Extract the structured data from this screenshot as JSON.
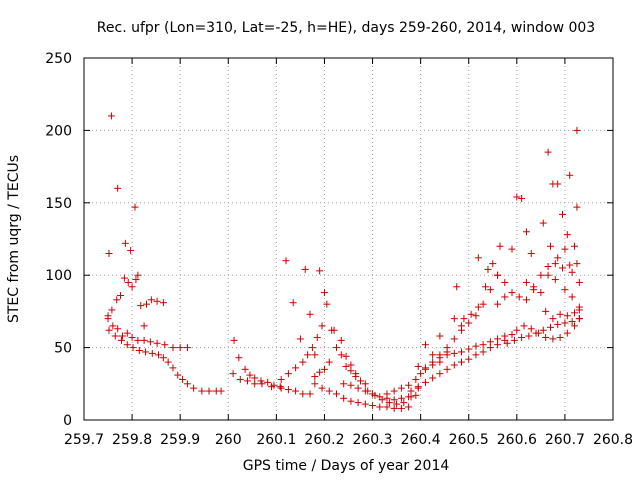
{
  "chart_data": {
    "type": "scatter",
    "title": "Rec. ufpr (Lon=310, Lat=-25, h=HE), days 259-260, 2014, window 003",
    "xlabel": "GPS time / Days of year 2014",
    "ylabel": "STEC from uqrg / TECUs",
    "xlim": [
      259.7,
      260.8
    ],
    "ylim": [
      0,
      250
    ],
    "x_ticks": [
      "259.7",
      "259.8",
      "259.9",
      "260",
      "260.1",
      "260.2",
      "260.3",
      "260.4",
      "260.5",
      "260.6",
      "260.7",
      "260.8"
    ],
    "y_ticks": [
      "0",
      "50",
      "100",
      "150",
      "200",
      "250"
    ],
    "grid": true,
    "marker": "+",
    "color": "#cc0000",
    "points": [
      [
        259.752,
        115
      ],
      [
        259.757,
        210
      ],
      [
        259.77,
        160
      ],
      [
        259.786,
        122
      ],
      [
        259.797,
        117
      ],
      [
        259.806,
        147
      ],
      [
        259.75,
        72
      ],
      [
        259.758,
        76
      ],
      [
        259.768,
        83
      ],
      [
        259.776,
        86
      ],
      [
        259.784,
        98
      ],
      [
        259.792,
        95
      ],
      [
        259.8,
        92
      ],
      [
        259.808,
        97
      ],
      [
        259.812,
        100
      ],
      [
        259.818,
        79
      ],
      [
        259.825,
        65
      ],
      [
        259.83,
        80
      ],
      [
        259.84,
        83
      ],
      [
        259.852,
        82
      ],
      [
        259.865,
        81
      ],
      [
        259.75,
        70
      ],
      [
        259.76,
        65
      ],
      [
        259.77,
        63
      ],
      [
        259.78,
        58
      ],
      [
        259.79,
        60
      ],
      [
        259.8,
        57
      ],
      [
        259.812,
        55
      ],
      [
        259.825,
        55
      ],
      [
        259.838,
        54
      ],
      [
        259.852,
        53
      ],
      [
        259.868,
        52
      ],
      [
        259.885,
        50
      ],
      [
        259.9,
        50
      ],
      [
        259.915,
        50
      ],
      [
        259.752,
        62
      ],
      [
        259.765,
        58
      ],
      [
        259.778,
        55
      ],
      [
        259.79,
        52
      ],
      [
        259.802,
        50
      ],
      [
        259.815,
        48
      ],
      [
        259.828,
        47
      ],
      [
        259.842,
        46
      ],
      [
        259.855,
        45
      ],
      [
        259.865,
        43
      ],
      [
        259.875,
        40
      ],
      [
        259.885,
        36
      ],
      [
        259.895,
        31
      ],
      [
        259.905,
        28
      ],
      [
        259.915,
        25
      ],
      [
        259.928,
        22
      ],
      [
        259.945,
        20
      ],
      [
        259.96,
        20
      ],
      [
        259.975,
        20
      ],
      [
        259.985,
        20
      ],
      [
        260.012,
        55
      ],
      [
        260.022,
        43
      ],
      [
        260.035,
        35
      ],
      [
        260.045,
        31
      ],
      [
        260.055,
        29
      ],
      [
        260.068,
        27
      ],
      [
        260.082,
        26
      ],
      [
        260.095,
        24
      ],
      [
        260.108,
        23
      ],
      [
        260.01,
        32
      ],
      [
        260.025,
        28
      ],
      [
        260.04,
        27
      ],
      [
        260.055,
        25
      ],
      [
        260.07,
        25
      ],
      [
        260.09,
        23
      ],
      [
        260.11,
        22
      ],
      [
        260.125,
        21
      ],
      [
        260.14,
        20
      ],
      [
        260.155,
        18
      ],
      [
        260.17,
        18
      ],
      [
        260.12,
        110
      ],
      [
        260.135,
        81
      ],
      [
        260.15,
        56
      ],
      [
        260.16,
        104
      ],
      [
        260.17,
        73
      ],
      [
        260.18,
        45
      ],
      [
        260.19,
        103
      ],
      [
        260.2,
        88
      ],
      [
        260.11,
        28
      ],
      [
        260.125,
        32
      ],
      [
        260.14,
        36
      ],
      [
        260.155,
        40
      ],
      [
        260.165,
        45
      ],
      [
        260.175,
        50
      ],
      [
        260.185,
        57
      ],
      [
        260.195,
        65
      ],
      [
        260.18,
        30
      ],
      [
        260.19,
        33
      ],
      [
        260.2,
        35
      ],
      [
        260.21,
        40
      ],
      [
        260.22,
        62
      ],
      [
        260.235,
        55
      ],
      [
        260.245,
        44
      ],
      [
        260.255,
        38
      ],
      [
        260.265,
        30
      ],
      [
        260.275,
        27
      ],
      [
        260.285,
        25
      ],
      [
        260.205,
        80
      ],
      [
        260.215,
        62
      ],
      [
        260.225,
        50
      ],
      [
        260.235,
        45
      ],
      [
        260.245,
        37
      ],
      [
        260.255,
        34
      ],
      [
        260.265,
        32
      ],
      [
        260.18,
        25
      ],
      [
        260.195,
        22
      ],
      [
        260.21,
        20
      ],
      [
        260.225,
        18
      ],
      [
        260.24,
        15
      ],
      [
        260.255,
        13
      ],
      [
        260.27,
        12
      ],
      [
        260.285,
        11
      ],
      [
        260.3,
        10
      ],
      [
        260.315,
        9
      ],
      [
        260.33,
        9
      ],
      [
        260.345,
        8
      ],
      [
        260.36,
        8
      ],
      [
        260.375,
        9
      ],
      [
        260.24,
        25
      ],
      [
        260.255,
        24
      ],
      [
        260.27,
        22
      ],
      [
        260.285,
        20
      ],
      [
        260.3,
        18
      ],
      [
        260.315,
        16
      ],
      [
        260.33,
        15
      ],
      [
        260.345,
        14
      ],
      [
        260.36,
        15
      ],
      [
        260.375,
        16
      ],
      [
        260.39,
        17
      ],
      [
        260.29,
        20
      ],
      [
        260.305,
        17
      ],
      [
        260.32,
        14
      ],
      [
        260.335,
        12
      ],
      [
        260.35,
        11
      ],
      [
        260.365,
        12
      ],
      [
        260.38,
        16
      ],
      [
        260.395,
        22
      ],
      [
        260.33,
        18
      ],
      [
        260.345,
        20
      ],
      [
        260.36,
        22
      ],
      [
        260.375,
        24
      ],
      [
        260.39,
        28
      ],
      [
        260.4,
        32
      ],
      [
        260.41,
        35
      ],
      [
        260.425,
        38
      ],
      [
        260.44,
        40
      ],
      [
        260.38,
        20
      ],
      [
        260.395,
        23
      ],
      [
        260.41,
        26
      ],
      [
        260.425,
        29
      ],
      [
        260.44,
        32
      ],
      [
        260.455,
        35
      ],
      [
        260.47,
        38
      ],
      [
        260.485,
        40
      ],
      [
        260.5,
        42
      ],
      [
        260.515,
        45
      ],
      [
        260.53,
        47
      ],
      [
        260.545,
        50
      ],
      [
        260.56,
        52
      ],
      [
        260.575,
        55
      ],
      [
        260.395,
        37
      ],
      [
        260.41,
        36
      ],
      [
        260.425,
        40
      ],
      [
        260.44,
        45
      ],
      [
        260.455,
        50
      ],
      [
        260.47,
        56
      ],
      [
        260.485,
        62
      ],
      [
        260.5,
        67
      ],
      [
        260.515,
        72
      ],
      [
        260.53,
        80
      ],
      [
        260.545,
        90
      ],
      [
        260.56,
        100
      ],
      [
        260.41,
        52
      ],
      [
        260.425,
        45
      ],
      [
        260.44,
        58
      ],
      [
        260.455,
        47
      ],
      [
        260.47,
        70
      ],
      [
        260.485,
        65
      ],
      [
        260.475,
        92
      ],
      [
        260.49,
        70
      ],
      [
        260.505,
        73
      ],
      [
        260.52,
        78
      ],
      [
        260.535,
        92
      ],
      [
        260.55,
        108
      ],
      [
        260.565,
        120
      ],
      [
        260.44,
        43
      ],
      [
        260.455,
        45
      ],
      [
        260.47,
        46
      ],
      [
        260.485,
        47
      ],
      [
        260.5,
        49
      ],
      [
        260.515,
        51
      ],
      [
        260.53,
        52
      ],
      [
        260.545,
        54
      ],
      [
        260.56,
        56
      ],
      [
        260.575,
        58
      ],
      [
        260.59,
        59
      ],
      [
        260.52,
        112
      ],
      [
        260.54,
        104
      ],
      [
        260.56,
        100
      ],
      [
        260.575,
        95
      ],
      [
        260.59,
        118
      ],
      [
        260.6,
        154
      ],
      [
        260.61,
        153
      ],
      [
        260.62,
        130
      ],
      [
        260.63,
        115
      ],
      [
        260.56,
        80
      ],
      [
        260.575,
        85
      ],
      [
        260.59,
        88
      ],
      [
        260.605,
        85
      ],
      [
        260.62,
        83
      ],
      [
        260.635,
        90
      ],
      [
        260.65,
        100
      ],
      [
        260.665,
        106
      ],
      [
        260.68,
        108
      ],
      [
        260.695,
        105
      ],
      [
        260.71,
        107
      ],
      [
        260.725,
        108
      ],
      [
        260.58,
        53
      ],
      [
        260.595,
        55
      ],
      [
        260.61,
        57
      ],
      [
        260.625,
        58
      ],
      [
        260.64,
        60
      ],
      [
        260.655,
        62
      ],
      [
        260.67,
        64
      ],
      [
        260.685,
        66
      ],
      [
        260.7,
        67
      ],
      [
        260.715,
        68
      ],
      [
        260.73,
        70
      ],
      [
        260.6,
        62
      ],
      [
        260.615,
        65
      ],
      [
        260.63,
        63
      ],
      [
        260.645,
        60
      ],
      [
        260.66,
        57
      ],
      [
        260.675,
        56
      ],
      [
        260.69,
        57
      ],
      [
        260.705,
        60
      ],
      [
        260.72,
        65
      ],
      [
        260.73,
        70
      ],
      [
        260.62,
        95
      ],
      [
        260.635,
        92
      ],
      [
        260.65,
        88
      ],
      [
        260.665,
        100
      ],
      [
        260.68,
        97
      ],
      [
        260.7,
        90
      ],
      [
        260.715,
        85
      ],
      [
        260.73,
        78
      ],
      [
        260.655,
        136
      ],
      [
        260.665,
        185
      ],
      [
        260.675,
        163
      ],
      [
        260.685,
        163
      ],
      [
        260.695,
        142
      ],
      [
        260.705,
        128
      ],
      [
        260.71,
        169
      ],
      [
        260.72,
        120
      ],
      [
        260.725,
        200
      ],
      [
        260.725,
        147
      ],
      [
        260.67,
        120
      ],
      [
        260.685,
        112
      ],
      [
        260.7,
        118
      ],
      [
        260.715,
        102
      ],
      [
        260.73,
        95
      ],
      [
        260.66,
        75
      ],
      [
        260.675,
        70
      ],
      [
        260.69,
        73
      ],
      [
        260.705,
        72
      ],
      [
        260.72,
        74
      ],
      [
        260.73,
        76
      ]
    ]
  }
}
